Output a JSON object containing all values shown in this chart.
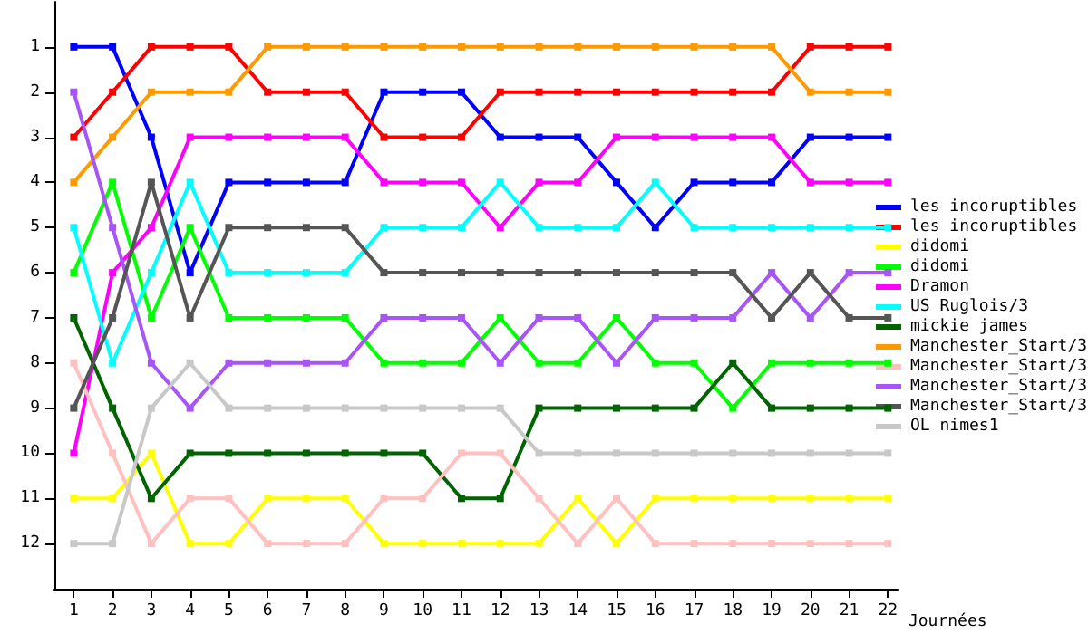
{
  "chart_data": {
    "type": "line",
    "xlabel": "Journées",
    "x": [
      1,
      2,
      3,
      4,
      5,
      6,
      7,
      8,
      9,
      10,
      11,
      12,
      13,
      14,
      15,
      16,
      17,
      18,
      19,
      20,
      21,
      22
    ],
    "xlim": [
      0.5,
      22.25
    ],
    "xticks": [
      1,
      2,
      3,
      4,
      5,
      6,
      7,
      8,
      9,
      10,
      11,
      12,
      13,
      14,
      15,
      16,
      17,
      18,
      19,
      20,
      21,
      22
    ],
    "ylim": [
      13,
      0
    ],
    "yticks": [
      1,
      2,
      3,
      4,
      5,
      6,
      7,
      8,
      9,
      10,
      11,
      12
    ],
    "grid": false,
    "legend": "right",
    "marker": "square",
    "line_style": "solid",
    "series": [
      {
        "name": "les incoruptibles",
        "color": "#0000ff",
        "values": [
          1,
          1,
          3,
          6,
          4,
          4,
          4,
          4,
          2,
          2,
          2,
          3,
          3,
          3,
          4,
          5,
          4,
          4,
          4,
          3,
          3,
          3
        ]
      },
      {
        "name": "les incoruptibles",
        "color": "#ff0000",
        "values": [
          3,
          2,
          1,
          1,
          1,
          2,
          2,
          2,
          3,
          3,
          3,
          2,
          2,
          2,
          2,
          2,
          2,
          2,
          2,
          1,
          1,
          1
        ]
      },
      {
        "name": "didomi",
        "color": "#ffff00",
        "values": [
          11,
          11,
          10,
          12,
          12,
          11,
          11,
          11,
          12,
          12,
          12,
          12,
          12,
          11,
          12,
          11,
          11,
          11,
          11,
          11,
          11,
          11
        ]
      },
      {
        "name": "didomi",
        "color": "#00ff00",
        "values": [
          6,
          4,
          7,
          5,
          7,
          7,
          7,
          7,
          8,
          8,
          8,
          7,
          8,
          8,
          7,
          8,
          8,
          9,
          8,
          8,
          8,
          8
        ]
      },
      {
        "name": "Dramon",
        "color": "#ff00ff",
        "values": [
          10,
          6,
          5,
          3,
          3,
          3,
          3,
          3,
          4,
          4,
          4,
          5,
          4,
          4,
          3,
          3,
          3,
          3,
          3,
          4,
          4,
          4
        ]
      },
      {
        "name": "US Ruglois/3",
        "color": "#00ffff",
        "values": [
          5,
          8,
          6,
          4,
          6,
          6,
          6,
          6,
          5,
          5,
          5,
          4,
          5,
          5,
          5,
          4,
          5,
          5,
          5,
          5,
          5,
          5
        ]
      },
      {
        "name": "mickie james",
        "color": "#006400",
        "values": [
          7,
          9,
          11,
          10,
          10,
          10,
          10,
          10,
          10,
          10,
          11,
          11,
          9,
          9,
          9,
          9,
          9,
          8,
          9,
          9,
          9,
          9
        ]
      },
      {
        "name": "Manchester_Start/3",
        "color": "#ff9900",
        "values": [
          4,
          3,
          2,
          2,
          2,
          1,
          1,
          1,
          1,
          1,
          1,
          1,
          1,
          1,
          1,
          1,
          1,
          1,
          1,
          2,
          2,
          2
        ]
      },
      {
        "name": "Manchester_Start/3",
        "color": "#ffc0c0",
        "values": [
          8,
          10,
          12,
          11,
          11,
          12,
          12,
          12,
          11,
          11,
          10,
          10,
          11,
          12,
          11,
          12,
          12,
          12,
          12,
          12,
          12,
          12
        ]
      },
      {
        "name": "Manchester_Start/3",
        "color": "#a855f7",
        "values": [
          2,
          5,
          8,
          9,
          8,
          8,
          8,
          8,
          7,
          7,
          7,
          8,
          7,
          7,
          8,
          7,
          7,
          7,
          6,
          7,
          6,
          6
        ]
      },
      {
        "name": "Manchester_Start/3",
        "color": "#555555",
        "values": [
          9,
          7,
          4,
          7,
          5,
          5,
          5,
          5,
          6,
          6,
          6,
          6,
          6,
          6,
          6,
          6,
          6,
          6,
          7,
          6,
          7,
          7
        ]
      },
      {
        "name": "OL nimes1",
        "color": "#c8c8c8",
        "values": [
          12,
          12,
          9,
          8,
          9,
          9,
          9,
          9,
          9,
          9,
          9,
          9,
          10,
          10,
          10,
          10,
          10,
          10,
          10,
          10,
          10,
          10
        ]
      }
    ]
  }
}
